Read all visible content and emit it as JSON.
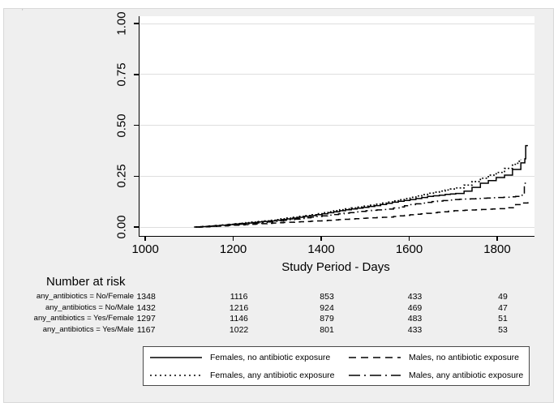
{
  "figure": {
    "corner_mark": "'",
    "bg_color": "#efefef",
    "plot_bg_color": "#ffffff",
    "grid_color": "#dedede",
    "line_color": "#000000"
  },
  "chart_data": {
    "type": "line",
    "subtype": "kaplan-meier-step",
    "title": "",
    "xlabel": "Study Period - Days",
    "ylabel": "",
    "xlim": [
      985,
      1883
    ],
    "ylim": [
      0,
      1.036
    ],
    "x_ticks": [
      1000,
      1200,
      1400,
      1600,
      1800
    ],
    "y_ticks": [
      0.0,
      0.25,
      0.5,
      0.75,
      1.0
    ],
    "y_tick_labels": [
      "0.00",
      "0.25",
      "0.50",
      "0.75",
      "1.00"
    ],
    "grid": true,
    "legend_position": "bottom",
    "series": [
      {
        "key": "females-no-antibiotics",
        "name": "Females, no antibiotic exposure",
        "style": "solid",
        "points": [
          [
            1109,
            0
          ],
          [
            1140,
            0.004
          ],
          [
            1170,
            0.009
          ],
          [
            1200,
            0.015
          ],
          [
            1240,
            0.022
          ],
          [
            1280,
            0.03
          ],
          [
            1320,
            0.04
          ],
          [
            1360,
            0.052
          ],
          [
            1400,
            0.065
          ],
          [
            1440,
            0.08
          ],
          [
            1480,
            0.093
          ],
          [
            1520,
            0.105
          ],
          [
            1560,
            0.122
          ],
          [
            1600,
            0.135
          ],
          [
            1640,
            0.15
          ],
          [
            1680,
            0.16
          ],
          [
            1704,
            0.165
          ],
          [
            1723,
            0.176
          ],
          [
            1741,
            0.195
          ],
          [
            1760,
            0.215
          ],
          [
            1778,
            0.228
          ],
          [
            1796,
            0.243
          ],
          [
            1815,
            0.255
          ],
          [
            1833,
            0.283
          ],
          [
            1852,
            0.315
          ],
          [
            1861,
            0.335
          ],
          [
            1863,
            0.4
          ],
          [
            1868,
            0.4
          ]
        ]
      },
      {
        "key": "females-any-antibiotics",
        "name": "Females, any antibiotic exposure",
        "style": "dotted",
        "points": [
          [
            1112,
            0
          ],
          [
            1140,
            0.005
          ],
          [
            1170,
            0.01
          ],
          [
            1200,
            0.016
          ],
          [
            1240,
            0.024
          ],
          [
            1280,
            0.033
          ],
          [
            1320,
            0.044
          ],
          [
            1360,
            0.056
          ],
          [
            1400,
            0.07
          ],
          [
            1440,
            0.085
          ],
          [
            1480,
            0.098
          ],
          [
            1520,
            0.112
          ],
          [
            1560,
            0.128
          ],
          [
            1600,
            0.146
          ],
          [
            1640,
            0.166
          ],
          [
            1680,
            0.182
          ],
          [
            1704,
            0.192
          ],
          [
            1723,
            0.206
          ],
          [
            1741,
            0.223
          ],
          [
            1760,
            0.24
          ],
          [
            1778,
            0.255
          ],
          [
            1796,
            0.268
          ],
          [
            1815,
            0.288
          ],
          [
            1833,
            0.308
          ],
          [
            1845,
            0.323
          ],
          [
            1852,
            0.332
          ]
        ]
      },
      {
        "key": "males-no-antibiotics",
        "name": "Males, no antibiotic exposure",
        "style": "dashed",
        "points": [
          [
            1115,
            0
          ],
          [
            1160,
            0.004
          ],
          [
            1200,
            0.009
          ],
          [
            1250,
            0.015
          ],
          [
            1300,
            0.021
          ],
          [
            1350,
            0.026
          ],
          [
            1400,
            0.031
          ],
          [
            1450,
            0.038
          ],
          [
            1500,
            0.044
          ],
          [
            1550,
            0.049
          ],
          [
            1600,
            0.06
          ],
          [
            1650,
            0.07
          ],
          [
            1700,
            0.08
          ],
          [
            1750,
            0.085
          ],
          [
            1800,
            0.09
          ],
          [
            1820,
            0.095
          ],
          [
            1840,
            0.11
          ],
          [
            1855,
            0.118
          ],
          [
            1868,
            0.122
          ]
        ],
        "ylabel_note": ""
      },
      {
        "key": "males-any-antibiotics",
        "name": "Males, any antibiotic exposure",
        "style": "dashdot",
        "points": [
          [
            1113,
            0
          ],
          [
            1160,
            0.006
          ],
          [
            1200,
            0.012
          ],
          [
            1250,
            0.02
          ],
          [
            1300,
            0.03
          ],
          [
            1350,
            0.042
          ],
          [
            1400,
            0.055
          ],
          [
            1450,
            0.068
          ],
          [
            1500,
            0.08
          ],
          [
            1550,
            0.088
          ],
          [
            1600,
            0.11
          ],
          [
            1650,
            0.125
          ],
          [
            1700,
            0.135
          ],
          [
            1750,
            0.14
          ],
          [
            1800,
            0.145
          ],
          [
            1840,
            0.15
          ],
          [
            1855,
            0.157
          ],
          [
            1860,
            0.215
          ],
          [
            1868,
            0.215
          ]
        ]
      }
    ]
  },
  "risk_table": {
    "title": "Number at risk",
    "times": [
      1000,
      1200,
      1400,
      1600,
      1800
    ],
    "rows": [
      {
        "label": "any_antibiotics = No/Female",
        "values": [
          "1348",
          "1116",
          "853",
          "433",
          "49"
        ]
      },
      {
        "label": "any_antibiotics = No/Male",
        "values": [
          "1432",
          "1216",
          "924",
          "469",
          "47"
        ]
      },
      {
        "label": "any_antibiotics = Yes/Female",
        "values": [
          "1297",
          "1146",
          "879",
          "483",
          "51"
        ]
      },
      {
        "label": "any_antibiotics = Yes/Male",
        "values": [
          "1167",
          "1022",
          "801",
          "433",
          "53"
        ]
      }
    ]
  },
  "legend": {
    "entries": [
      {
        "label": "Females, no antibiotic exposure",
        "style": "solid"
      },
      {
        "label": "Males, no antibiotic exposure",
        "style": "dashed"
      },
      {
        "label": "Females, any antibiotic exposure",
        "style": "dotted"
      },
      {
        "label": "Males, any antibiotic exposure",
        "style": "dashdot"
      }
    ]
  }
}
